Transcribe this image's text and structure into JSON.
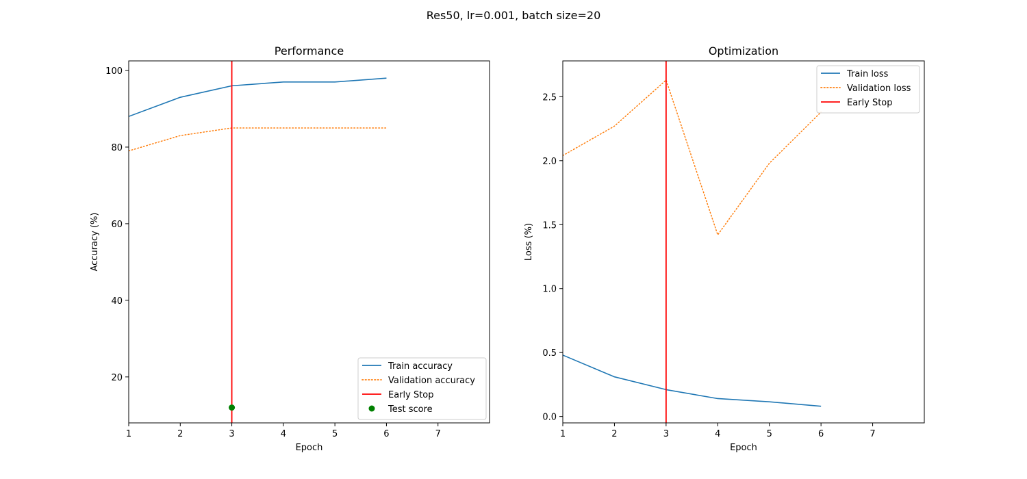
{
  "figure": {
    "suptitle": "Res50, lr=0.001, batch size=20"
  },
  "colors": {
    "train": "#1f77b4",
    "validation": "#ff7f0e",
    "early_stop": "#ff0000",
    "test": "#008000"
  },
  "chart_data": [
    {
      "type": "line",
      "title": "Performance",
      "xlabel": "Epoch",
      "ylabel": "Accuracy (%)",
      "xlim": [
        1,
        8
      ],
      "ylim": [
        8,
        102.5
      ],
      "xticks": [
        1,
        2,
        3,
        4,
        5,
        6,
        7
      ],
      "yticks": [
        20,
        40,
        60,
        80,
        100
      ],
      "legend_position": "lower right",
      "series": [
        {
          "name": "Train accuracy",
          "style": "solid",
          "color": "#1f77b4",
          "x": [
            1,
            2,
            3,
            4,
            5,
            6
          ],
          "y": [
            88,
            93,
            96,
            97,
            97,
            98
          ]
        },
        {
          "name": "Validation accuracy",
          "style": "dotted",
          "color": "#ff7f0e",
          "x": [
            1,
            2,
            3,
            4,
            5,
            6
          ],
          "y": [
            79,
            83,
            85,
            85,
            85,
            85
          ]
        }
      ],
      "vline": {
        "name": "Early Stop",
        "x": 3,
        "color": "#ff0000"
      },
      "points": [
        {
          "name": "Test score",
          "x": 3,
          "y": 12,
          "color": "#008000"
        }
      ]
    },
    {
      "type": "line",
      "title": "Optimization",
      "xlabel": "Epoch",
      "ylabel": "Loss (%)",
      "xlim": [
        1,
        8
      ],
      "ylim": [
        -0.05,
        2.78
      ],
      "xticks": [
        1,
        2,
        3,
        4,
        5,
        6,
        7
      ],
      "yticks": [
        0.0,
        0.5,
        1.0,
        1.5,
        2.0,
        2.5
      ],
      "legend_position": "upper right",
      "series": [
        {
          "name": "Train loss",
          "style": "solid",
          "color": "#1f77b4",
          "x": [
            1,
            2,
            3,
            4,
            5,
            6
          ],
          "y": [
            0.48,
            0.31,
            0.21,
            0.14,
            0.115,
            0.08
          ]
        },
        {
          "name": "Validation loss",
          "style": "dotted",
          "color": "#ff7f0e",
          "x": [
            1,
            2,
            3,
            4,
            5,
            6
          ],
          "y": [
            2.04,
            2.27,
            2.63,
            1.42,
            1.98,
            2.38
          ]
        }
      ],
      "vline": {
        "name": "Early Stop",
        "x": 3,
        "color": "#ff0000"
      },
      "points": []
    }
  ]
}
